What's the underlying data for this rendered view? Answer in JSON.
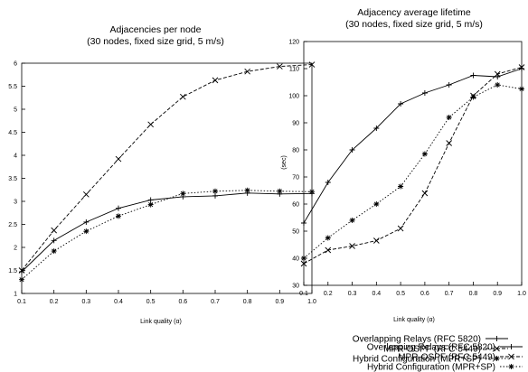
{
  "chart_data": [
    {
      "type": "line",
      "title": "Adjacencies per node",
      "subtitle": "(30 nodes, fixed size grid, 5 m/s)",
      "xlabel": "Link quality (α)",
      "ylabel": "",
      "x": [
        0.1,
        0.2,
        0.3,
        0.4,
        0.5,
        0.6,
        0.7,
        0.8,
        0.9,
        1.0
      ],
      "x_ticks": [
        "0.1",
        "0.2",
        "0.3",
        "0.4",
        "0.5",
        "0.6",
        "0.7",
        "0.8",
        "0.9",
        "1.0"
      ],
      "xlim": [
        0.1,
        1.0
      ],
      "ylim": [
        1,
        6
      ],
      "y_ticks": [
        "1",
        "1.5",
        "2",
        "2.5",
        "3",
        "3.5",
        "4",
        "4.5",
        "5",
        "5.5",
        "6"
      ],
      "grid": false,
      "legend_position": "bottom-right",
      "series": [
        {
          "name": "Overlapping Relays (RFC 5820)",
          "style": "solid",
          "marker": "plus",
          "values": [
            1.47,
            2.15,
            2.55,
            2.85,
            3.03,
            3.1,
            3.12,
            3.18,
            3.16,
            3.17
          ]
        },
        {
          "name": "MPR-OSPF (RFC 5449)",
          "style": "dashed",
          "marker": "x",
          "values": [
            1.5,
            2.37,
            3.15,
            3.92,
            4.67,
            5.27,
            5.63,
            5.82,
            5.93,
            5.97
          ]
        },
        {
          "name": "Hybrid Configuration (MPR+SP)",
          "style": "dotted",
          "marker": "asterisk",
          "values": [
            1.3,
            1.92,
            2.35,
            2.68,
            2.93,
            3.17,
            3.22,
            3.24,
            3.22,
            3.21
          ]
        }
      ]
    },
    {
      "type": "line",
      "title": "Adjacency average lifetime",
      "subtitle": "(30 nodes, fixed size grid, 5 m/s)",
      "xlabel": "Link quality (α)",
      "ylabel": "(sec)",
      "x": [
        0.1,
        0.2,
        0.3,
        0.4,
        0.5,
        0.6,
        0.7,
        0.8,
        0.9,
        1.0
      ],
      "x_ticks": [
        "0.1",
        "0.2",
        "0.3",
        "0.4",
        "0.5",
        "0.6",
        "0.7",
        "0.8",
        "0.9",
        "1.0"
      ],
      "xlim": [
        0.1,
        1.0
      ],
      "ylim": [
        30,
        120
      ],
      "y_ticks": [
        "30",
        "40",
        "50",
        "60",
        "70",
        "80",
        "90",
        "100",
        "110",
        "120"
      ],
      "grid": false,
      "legend_position": "bottom-right",
      "series": [
        {
          "name": "Overlapping Relays (RFC 5820)",
          "style": "solid",
          "marker": "plus",
          "values": [
            53,
            68,
            80,
            88,
            97,
            101,
            104,
            107.5,
            107,
            110
          ]
        },
        {
          "name": "MPR-OSPF (RFC 5449)",
          "style": "dashed",
          "marker": "x",
          "values": [
            38,
            43,
            44.5,
            46.5,
            51,
            64,
            82.5,
            100,
            108,
            110.5
          ]
        },
        {
          "name": "Hybrid Configuration (MPR+SP)",
          "style": "dotted",
          "marker": "asterisk",
          "values": [
            40,
            47.5,
            54,
            60,
            66.5,
            78.5,
            92,
            99.5,
            104,
            102.5
          ]
        }
      ]
    }
  ]
}
